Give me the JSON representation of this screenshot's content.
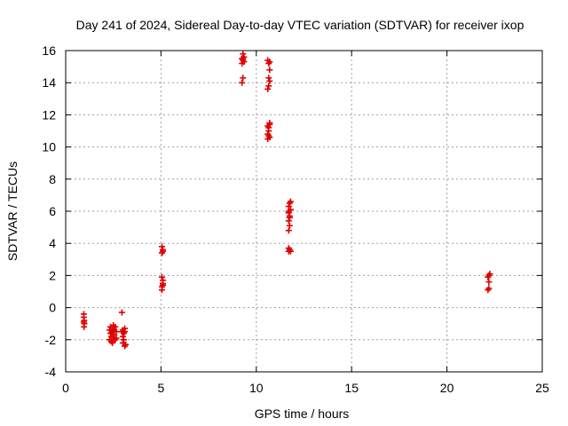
{
  "chart_data": {
    "type": "scatter",
    "title": "Day 241 of 2024, Sidereal Day-to-day VTEC variation (SDTVAR) for receiver ixop",
    "xlabel": "GPS time / hours",
    "ylabel": "SDTVAR / TECUs",
    "xlim": [
      0,
      25
    ],
    "ylim": [
      -4,
      16
    ],
    "xticks": [
      0,
      5,
      10,
      15,
      20,
      25
    ],
    "yticks": [
      -4,
      -2,
      0,
      2,
      4,
      6,
      8,
      10,
      12,
      14,
      16
    ],
    "grid": true,
    "marker": "plus",
    "color": "#e00000",
    "series": [
      {
        "name": "ixop",
        "points": [
          [
            0.95,
            -0.4
          ],
          [
            0.95,
            -0.6
          ],
          [
            0.97,
            -0.8
          ],
          [
            0.95,
            -0.9
          ],
          [
            0.98,
            -1.0
          ],
          [
            0.96,
            -1.2
          ],
          [
            2.3,
            -1.4
          ],
          [
            2.35,
            -1.6
          ],
          [
            2.4,
            -1.8
          ],
          [
            2.3,
            -2.0
          ],
          [
            2.45,
            -1.5
          ],
          [
            2.5,
            -1.3
          ],
          [
            2.4,
            -2.1
          ],
          [
            2.55,
            -1.7
          ],
          [
            2.5,
            -1.9
          ],
          [
            2.6,
            -2.0
          ],
          [
            2.6,
            -1.2
          ],
          [
            2.65,
            -1.5
          ],
          [
            2.35,
            -1.2
          ],
          [
            2.45,
            -2.2
          ],
          [
            2.55,
            -1.4
          ],
          [
            2.65,
            -1.9
          ],
          [
            2.5,
            -1.1
          ],
          [
            2.4,
            -1.6
          ],
          [
            2.95,
            -0.3
          ],
          [
            3.0,
            -1.4
          ],
          [
            3.05,
            -1.6
          ],
          [
            3.0,
            -2.2
          ],
          [
            3.1,
            -2.4
          ],
          [
            3.05,
            -2.0
          ],
          [
            2.95,
            -1.5
          ],
          [
            3.1,
            -1.3
          ],
          [
            3.15,
            -2.3
          ],
          [
            3.0,
            -1.8
          ],
          [
            3.1,
            -1.5
          ],
          [
            5.05,
            1.1
          ],
          [
            5.05,
            1.3
          ],
          [
            5.1,
            1.5
          ],
          [
            5.1,
            1.7
          ],
          [
            5.05,
            1.9
          ],
          [
            5.1,
            1.4
          ],
          [
            5.05,
            3.4
          ],
          [
            5.1,
            3.6
          ],
          [
            5.05,
            3.8
          ],
          [
            5.1,
            3.5
          ],
          [
            9.25,
            14.0
          ],
          [
            9.3,
            14.3
          ],
          [
            9.25,
            15.2
          ],
          [
            9.3,
            15.4
          ],
          [
            9.35,
            15.6
          ],
          [
            9.3,
            15.8
          ],
          [
            9.25,
            15.5
          ],
          [
            9.35,
            15.3
          ],
          [
            9.3,
            15.5
          ],
          [
            10.6,
            13.6
          ],
          [
            10.65,
            13.8
          ],
          [
            10.7,
            14.1
          ],
          [
            10.65,
            14.3
          ],
          [
            10.7,
            14.8
          ],
          [
            10.65,
            15.2
          ],
          [
            10.6,
            15.4
          ],
          [
            10.7,
            15.3
          ],
          [
            10.6,
            10.5
          ],
          [
            10.65,
            10.7
          ],
          [
            10.7,
            10.6
          ],
          [
            10.65,
            11.0
          ],
          [
            10.6,
            11.3
          ],
          [
            10.7,
            11.5
          ],
          [
            10.65,
            11.2
          ],
          [
            10.6,
            10.8
          ],
          [
            10.7,
            11.4
          ],
          [
            11.7,
            3.5
          ],
          [
            11.75,
            3.6
          ],
          [
            11.7,
            3.7
          ],
          [
            11.8,
            3.5
          ],
          [
            11.7,
            4.8
          ],
          [
            11.75,
            5.1
          ],
          [
            11.7,
            5.4
          ],
          [
            11.75,
            5.7
          ],
          [
            11.7,
            5.9
          ],
          [
            11.8,
            6.1
          ],
          [
            11.7,
            6.3
          ],
          [
            11.75,
            6.5
          ],
          [
            11.8,
            6.6
          ],
          [
            11.7,
            6.0
          ],
          [
            11.75,
            5.6
          ],
          [
            22.15,
            1.1
          ],
          [
            22.2,
            1.6
          ],
          [
            22.15,
            1.9
          ],
          [
            22.2,
            2.0
          ],
          [
            22.25,
            2.1
          ],
          [
            22.2,
            1.2
          ]
        ]
      }
    ]
  }
}
